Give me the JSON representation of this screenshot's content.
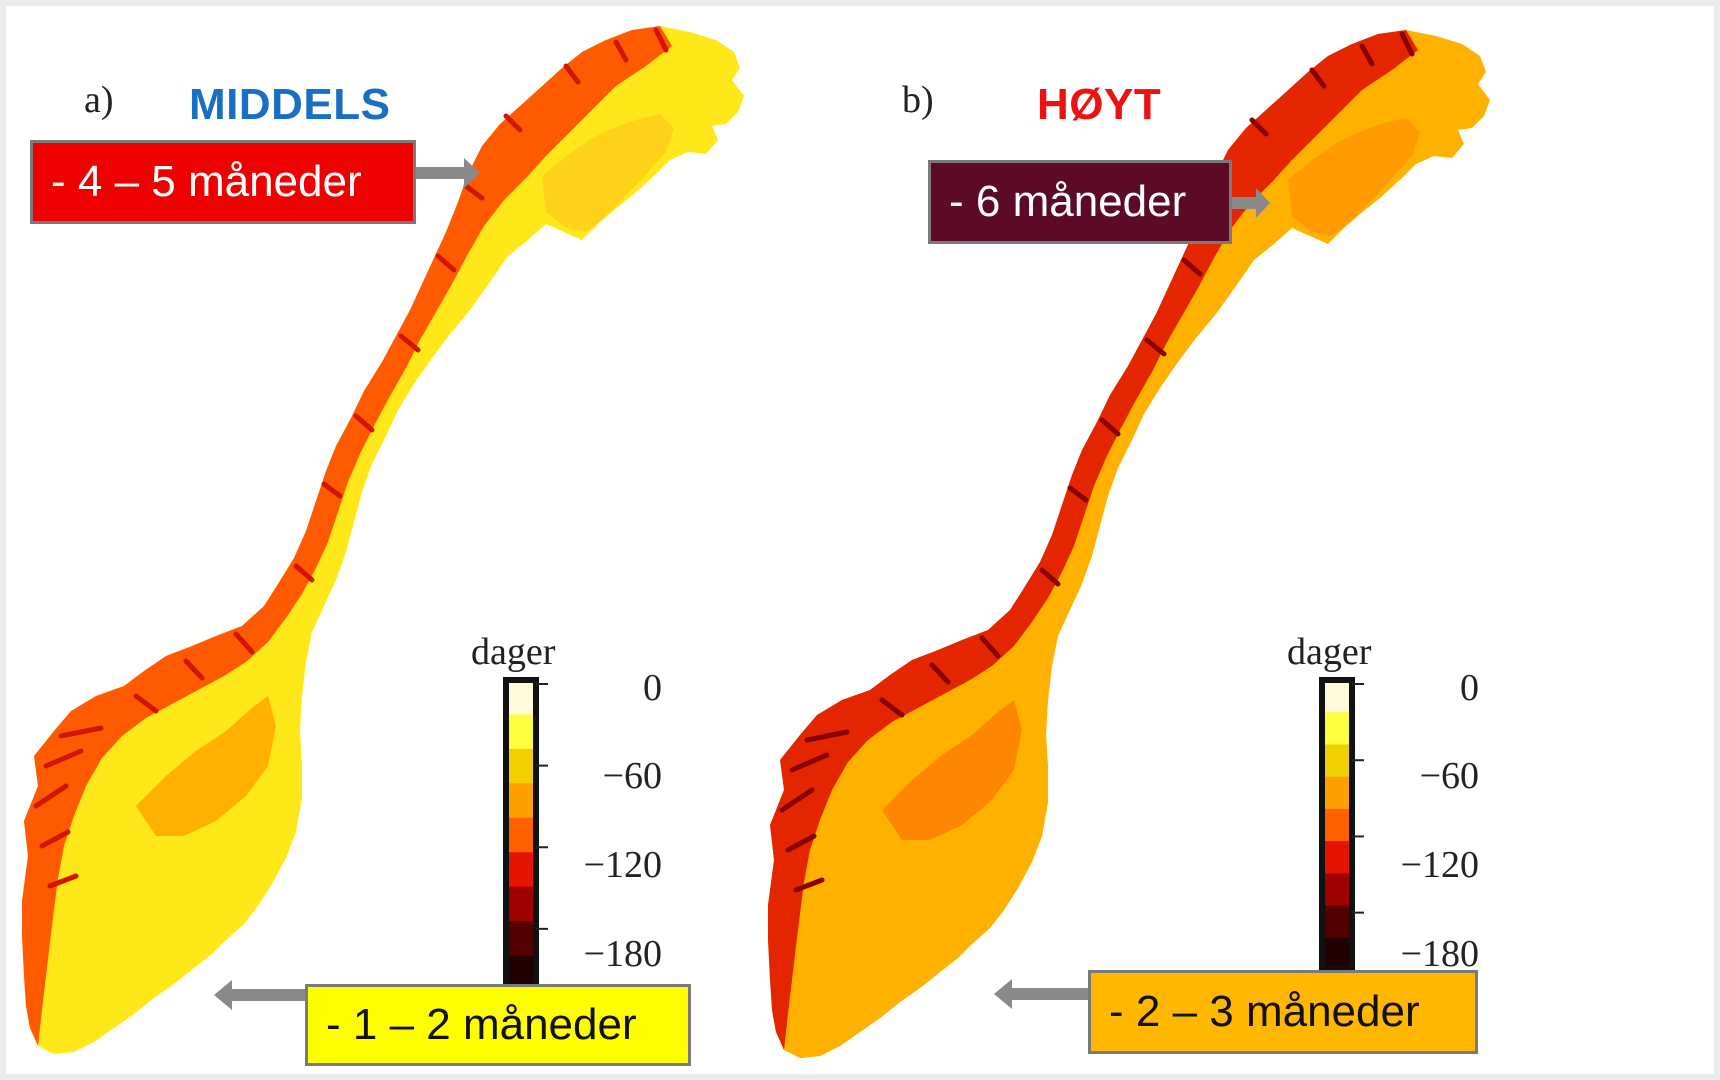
{
  "panels": [
    {
      "letter": "a)",
      "scenario": "MIDDELS",
      "scenario_color": "#1a6fc4",
      "upper_callout": {
        "text": "- 4 – 5 måneder",
        "bg": "#ee0000",
        "fg": "#ffffff"
      },
      "lower_callout": {
        "text": "- 1 – 2 måneder",
        "bg": "#ffff00",
        "fg": "#111111"
      }
    },
    {
      "letter": "b)",
      "scenario": "HØYT",
      "scenario_color": "#ee1111",
      "upper_callout": {
        "text": "- 6 måneder",
        "bg": "#5c0a26",
        "fg": "#ffffff"
      },
      "lower_callout": {
        "text": "- 2 – 3 måneder",
        "bg": "#ffb700",
        "fg": "#111111"
      }
    }
  ],
  "legend": {
    "title": "dager",
    "ticks": [
      "0",
      "−60",
      "−120",
      "−180"
    ],
    "colors": [
      "#fffbd8",
      "#ffff40",
      "#f0d000",
      "#ffa000",
      "#ff6000",
      "#e51400",
      "#a00000",
      "#550000",
      "#200000"
    ]
  },
  "map_palettes": {
    "middels": {
      "south": "#ffe81a",
      "midland": "#ffb000",
      "north": "#ffd21a",
      "coast": "#ff5a00",
      "fjord": "#d21500"
    },
    "hoyt": {
      "south": "#ffb100",
      "midland": "#ff8600",
      "north": "#ff9a00",
      "coast": "#e32600",
      "fjord": "#8a0000"
    }
  }
}
